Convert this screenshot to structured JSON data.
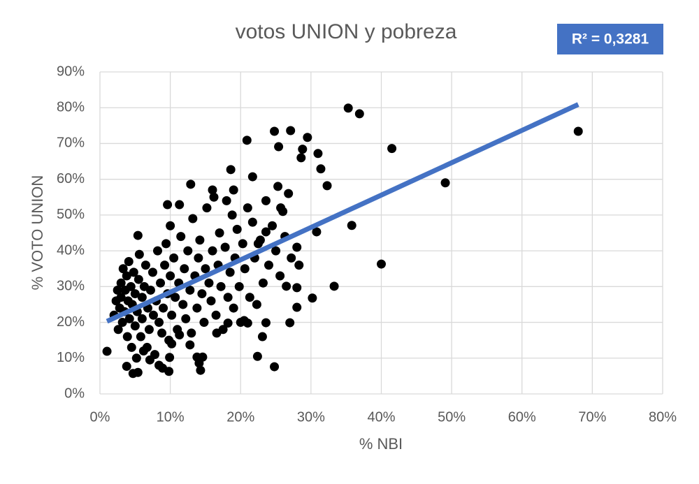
{
  "chart_data": {
    "type": "scatter",
    "title": "votos UNION y pobreza",
    "annotation": "R² = 0,3281",
    "xlabel": "% NBI",
    "ylabel": "% VOTO UNION",
    "grid": true,
    "xlim": [
      0,
      80
    ],
    "ylim": [
      0,
      90
    ],
    "xticks": [
      {
        "value": 0,
        "label": "0%"
      },
      {
        "value": 10,
        "label": "10%"
      },
      {
        "value": 20,
        "label": "20%"
      },
      {
        "value": 30,
        "label": "30%"
      },
      {
        "value": 40,
        "label": "40%"
      },
      {
        "value": 50,
        "label": "50%"
      },
      {
        "value": 60,
        "label": "60%"
      },
      {
        "value": 70,
        "label": "70%"
      },
      {
        "value": 80,
        "label": "80%"
      }
    ],
    "yticks": [
      {
        "value": 0,
        "label": "0%"
      },
      {
        "value": 10,
        "label": "10%"
      },
      {
        "value": 20,
        "label": "20%"
      },
      {
        "value": 30,
        "label": "30%"
      },
      {
        "value": 40,
        "label": "40%"
      },
      {
        "value": 50,
        "label": "50%"
      },
      {
        "value": 60,
        "label": "60%"
      },
      {
        "value": 70,
        "label": "70%"
      },
      {
        "value": 80,
        "label": "80%"
      },
      {
        "value": 90,
        "label": "90%"
      }
    ],
    "series": [
      {
        "color": "#000000",
        "x": [
          68.0,
          35.3,
          36.9,
          41.5,
          49.1,
          40.0,
          35.8,
          33.3,
          30.2,
          29.5,
          27.1,
          24.8,
          20.9,
          31.0,
          31.4,
          32.3,
          30.8,
          28.6,
          28.8,
          25.4,
          18.6,
          21.7,
          12.9,
          1.0,
          24.8,
          22.4,
          23.1,
          23.6,
          27.0,
          28.0,
          28.0,
          26.5,
          5.4,
          9.6,
          11.3,
          14.1,
          9.8,
          4.7,
          8.9,
          2,
          2.3,
          2.5,
          2.6,
          2.8,
          3,
          3,
          3.2,
          3.3,
          3.5,
          3.6,
          3.8,
          3.9,
          4,
          4.1,
          4.2,
          4.4,
          4.5,
          4.6,
          4.8,
          5,
          5,
          5.2,
          5.3,
          5.5,
          5.6,
          5.8,
          6,
          6,
          6.3,
          6.5,
          6.7,
          6.8,
          7,
          7.2,
          7.5,
          7.6,
          7.8,
          8,
          8.2,
          8.4,
          8.6,
          8.8,
          9,
          9.2,
          9.4,
          9.6,
          9.8,
          10,
          10,
          10.2,
          10.5,
          10.7,
          11,
          11.2,
          11.5,
          11.8,
          12,
          12.2,
          12.5,
          12.8,
          13,
          13.2,
          13.5,
          13.8,
          14,
          14.2,
          14.5,
          14.8,
          15,
          15.2,
          15.5,
          15.8,
          16,
          16.2,
          16.5,
          16.8,
          17,
          17.2,
          17.5,
          17.8,
          18,
          18.2,
          18.5,
          18.8,
          19,
          19.2,
          19.5,
          19.8,
          20,
          20.3,
          20.6,
          21,
          21.3,
          21.7,
          22,
          22.3,
          22.8,
          23.2,
          23.6,
          24,
          24.5,
          25,
          25.3,
          25.6,
          26,
          26.3,
          26.8,
          27.2,
          28,
          28.3,
          14.3,
          14.6,
          13.8,
          8.4,
          7.1,
          6.2,
          3.8,
          9.9,
          10.2,
          12.8,
          16.6,
          18.2,
          21,
          22.5,
          19,
          16,
          23.6,
          25.7,
          20.5,
          11.3,
          5.4
        ],
        "values": [
          73.4,
          79.9,
          78.3,
          68.6,
          59.0,
          36.3,
          47.1,
          30.1,
          26.8,
          71.7,
          73.6,
          73.4,
          70.9,
          67.2,
          62.9,
          58.2,
          45.3,
          66.0,
          68.4,
          69.1,
          62.7,
          60.7,
          58.6,
          11.9,
          7.6,
          10.5,
          16.0,
          19.9,
          19.9,
          24.2,
          29.7,
          30.1,
          44.3,
          52.9,
          52.9,
          8.6,
          6.3,
          5.7,
          7.2,
          22,
          26,
          29,
          18,
          24,
          31,
          27,
          20,
          35,
          23,
          29,
          33,
          16,
          26,
          37,
          21,
          30,
          13,
          25,
          34,
          19,
          28,
          10,
          23,
          32,
          39,
          16,
          27,
          21,
          30,
          36,
          13,
          24,
          18,
          29,
          34,
          22,
          11,
          26,
          40,
          20,
          31,
          17,
          24,
          36,
          42,
          28,
          15,
          47,
          33,
          22,
          38,
          27,
          18,
          31,
          44,
          25,
          35,
          21,
          40,
          29,
          17,
          49,
          33,
          24,
          38,
          43,
          28,
          20,
          35,
          52,
          31,
          26,
          40,
          55,
          22,
          36,
          45,
          30,
          18,
          41,
          54,
          27,
          34,
          50,
          24,
          38,
          46,
          30,
          20,
          42,
          35,
          52,
          27,
          48,
          38,
          25,
          43,
          31,
          54,
          36,
          47,
          40,
          58,
          33,
          51,
          44,
          56,
          38,
          41,
          36,
          6.6,
          10.3,
          10.3,
          8.0,
          9.5,
          12,
          7.7,
          10.2,
          14,
          13.7,
          17,
          19.8,
          19.8,
          42,
          57,
          57,
          45.3,
          52,
          20.5,
          16.5,
          6
        ]
      }
    ],
    "trendline": {
      "color": "#4472c4",
      "x": [
        1,
        68
      ],
      "values": [
        20.3,
        80.9
      ]
    }
  }
}
